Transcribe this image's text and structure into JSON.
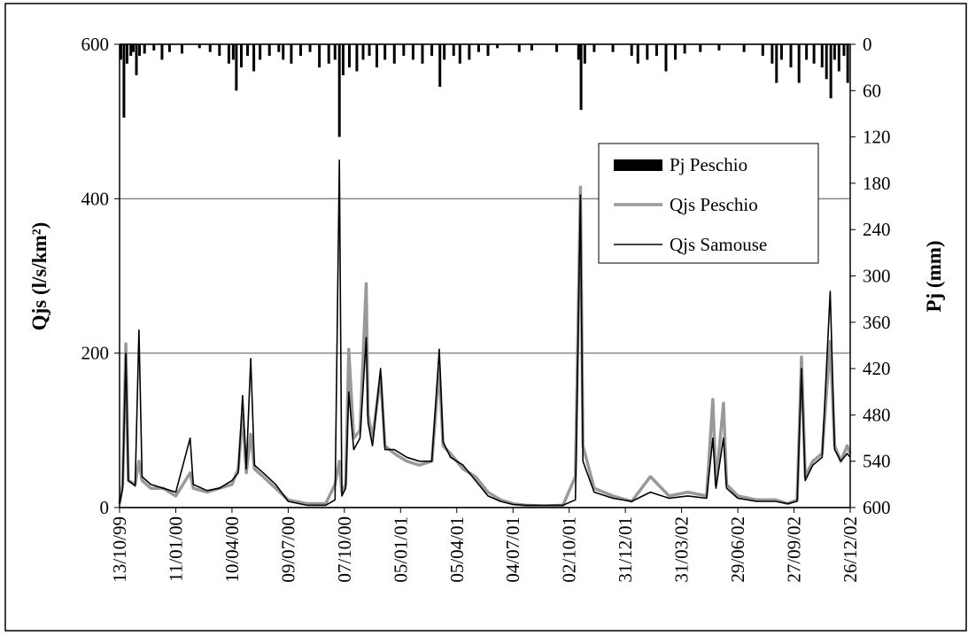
{
  "chart_data": {
    "type": "line",
    "y_label": "Qjs (l/s/km²)",
    "y2_label": "Pj (mm)",
    "xlim": [
      0,
      1170
    ],
    "xticks": [
      {
        "value": 0,
        "label": "13/10/99"
      },
      {
        "value": 90,
        "label": "11/01/00"
      },
      {
        "value": 180,
        "label": "10/04/00"
      },
      {
        "value": 270,
        "label": "09/07/00"
      },
      {
        "value": 360,
        "label": "07/10/00"
      },
      {
        "value": 450,
        "label": "05/01/01"
      },
      {
        "value": 540,
        "label": "05/04/01"
      },
      {
        "value": 630,
        "label": "04/07/01"
      },
      {
        "value": 720,
        "label": "02/10/01"
      },
      {
        "value": 810,
        "label": "31/12/01"
      },
      {
        "value": 900,
        "label": "31/03/02"
      },
      {
        "value": 990,
        "label": "29/06/02"
      },
      {
        "value": 1080,
        "label": "27/09/02"
      },
      {
        "value": 1170,
        "label": "26/12/02"
      }
    ],
    "ylim": [
      0,
      600
    ],
    "yticks": [
      0,
      200,
      400,
      600
    ],
    "y2lim": [
      600,
      0
    ],
    "y2ticks": [
      0,
      60,
      120,
      180,
      240,
      300,
      360,
      420,
      480,
      540,
      600
    ],
    "grid": true,
    "legend": "upper right",
    "series": [
      {
        "name": "Pj Peschio",
        "type": "bar",
        "axis": "y2",
        "color": "#000000",
        "x": [
          2,
          7,
          12,
          18,
          22,
          27,
          32,
          40,
          55,
          68,
          80,
          100,
          128,
          145,
          160,
          175,
          182,
          187,
          195,
          205,
          215,
          225,
          240,
          255,
          262,
          275,
          290,
          305,
          320,
          335,
          345,
          352,
          358,
          368,
          380,
          390,
          400,
          412,
          425,
          440,
          455,
          470,
          485,
          500,
          513,
          520,
          535,
          545,
          560,
          575,
          590,
          605,
          640,
          660,
          700,
          735,
          739,
          745,
          760,
          790,
          820,
          830,
          845,
          860,
          875,
          890,
          905,
          930,
          960,
          1000,
          1030,
          1045,
          1052,
          1060,
          1075,
          1088,
          1100,
          1112,
          1125,
          1132,
          1139,
          1145,
          1152,
          1160,
          1166
        ],
        "values": [
          20,
          95,
          25,
          15,
          10,
          40,
          15,
          12,
          8,
          20,
          10,
          12,
          5,
          10,
          15,
          25,
          20,
          60,
          30,
          15,
          35,
          20,
          15,
          10,
          20,
          25,
          15,
          10,
          30,
          25,
          20,
          120,
          40,
          30,
          35,
          20,
          15,
          30,
          20,
          25,
          15,
          20,
          25,
          15,
          55,
          20,
          15,
          25,
          20,
          10,
          15,
          5,
          10,
          8,
          10,
          20,
          85,
          25,
          10,
          10,
          15,
          25,
          20,
          15,
          35,
          20,
          12,
          10,
          8,
          10,
          15,
          25,
          50,
          20,
          30,
          50,
          20,
          25,
          30,
          45,
          70,
          20,
          35,
          15,
          50
        ]
      },
      {
        "name": "Qjs Peschio",
        "type": "line",
        "color": "#999999",
        "x": [
          0,
          5,
          10,
          14,
          25,
          31,
          36,
          50,
          70,
          90,
          113,
          118,
          140,
          160,
          180,
          190,
          197,
          203,
          210,
          216,
          230,
          250,
          270,
          300,
          330,
          345,
          352,
          356,
          362,
          367,
          375,
          385,
          395,
          398,
          405,
          418,
          425,
          440,
          460,
          480,
          500,
          512,
          518,
          530,
          550,
          570,
          590,
          610,
          630,
          650,
          680,
          710,
          730,
          738,
          742,
          760,
          790,
          820,
          850,
          880,
          910,
          940,
          950,
          955,
          967,
          972,
          990,
          1020,
          1050,
          1070,
          1085,
          1092,
          1098,
          1110,
          1125,
          1138,
          1145,
          1155,
          1165,
          1170
        ],
        "values": [
          5,
          30,
          212,
          35,
          30,
          60,
          35,
          25,
          25,
          15,
          45,
          25,
          20,
          25,
          30,
          50,
          120,
          45,
          95,
          50,
          40,
          25,
          10,
          5,
          5,
          30,
          60,
          20,
          30,
          205,
          90,
          100,
          290,
          120,
          90,
          170,
          80,
          70,
          60,
          55,
          60,
          180,
          80,
          70,
          50,
          40,
          20,
          10,
          5,
          3,
          2,
          3,
          40,
          415,
          80,
          25,
          15,
          8,
          40,
          15,
          20,
          15,
          140,
          30,
          135,
          30,
          15,
          10,
          10,
          5,
          10,
          195,
          40,
          60,
          70,
          215,
          80,
          60,
          80,
          70
        ]
      },
      {
        "name": "Qjs Samouse",
        "type": "line",
        "color": "#000000",
        "x": [
          0,
          5,
          10,
          14,
          25,
          31,
          36,
          50,
          70,
          90,
          113,
          118,
          140,
          160,
          180,
          190,
          197,
          203,
          210,
          216,
          230,
          250,
          270,
          300,
          330,
          345,
          352,
          356,
          362,
          367,
          375,
          385,
          395,
          398,
          405,
          418,
          425,
          440,
          460,
          480,
          500,
          512,
          518,
          530,
          550,
          570,
          590,
          610,
          630,
          650,
          680,
          710,
          730,
          738,
          742,
          760,
          790,
          820,
          850,
          880,
          910,
          940,
          950,
          955,
          967,
          972,
          990,
          1020,
          1050,
          1070,
          1085,
          1092,
          1098,
          1110,
          1125,
          1138,
          1145,
          1155,
          1165,
          1170
        ],
        "values": [
          5,
          25,
          200,
          35,
          28,
          230,
          40,
          30,
          25,
          20,
          90,
          30,
          22,
          25,
          35,
          45,
          145,
          50,
          193,
          55,
          45,
          30,
          8,
          3,
          3,
          10,
          450,
          15,
          25,
          150,
          75,
          90,
          220,
          110,
          80,
          180,
          75,
          75,
          65,
          60,
          60,
          205,
          85,
          65,
          55,
          35,
          15,
          8,
          4,
          3,
          3,
          3,
          10,
          405,
          60,
          20,
          12,
          8,
          20,
          12,
          15,
          12,
          90,
          25,
          90,
          25,
          12,
          8,
          8,
          5,
          8,
          180,
          35,
          55,
          65,
          280,
          75,
          60,
          70,
          65
        ]
      }
    ]
  }
}
